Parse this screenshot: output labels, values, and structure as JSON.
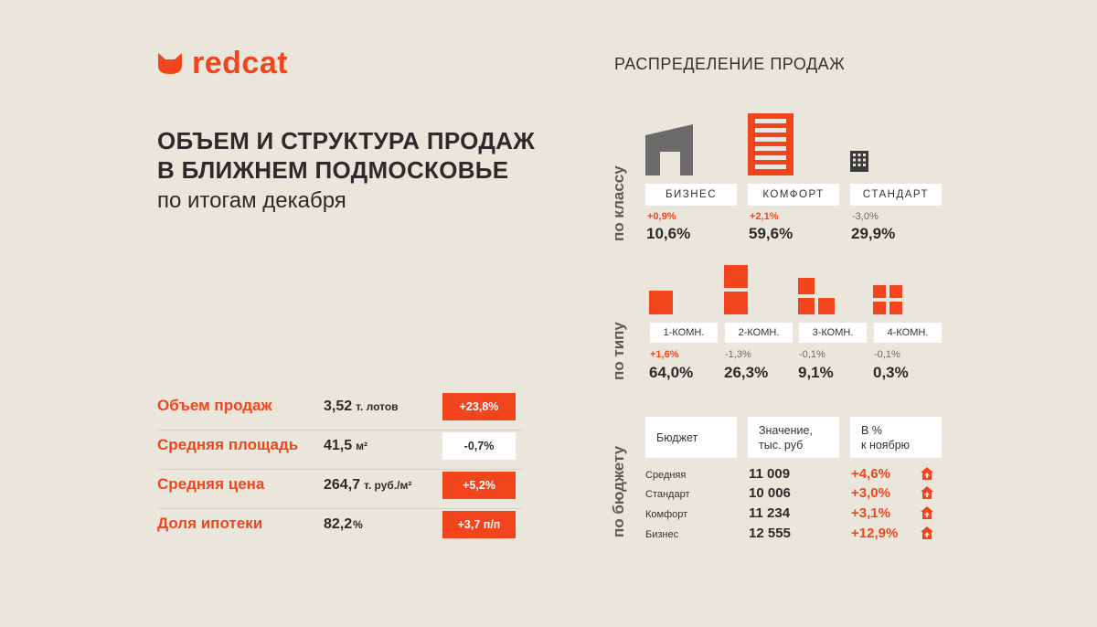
{
  "brand": {
    "name": "redcat",
    "color": "#f2441d"
  },
  "headline": {
    "line1": "ОБЪЕМ И СТРУКТУРА ПРОДАЖ",
    "line2": "В БЛИЖНЕМ ПОДМОСКОВЬЕ",
    "subtitle": "по итогам декабря"
  },
  "metrics": [
    {
      "label": "Объем продаж",
      "value": "3,52",
      "unit": "т. лотов",
      "change": "+23,8%",
      "positive": true
    },
    {
      "label": "Средняя площадь",
      "value": "41,5",
      "unit": "м²",
      "change": "-0,7%",
      "positive": false
    },
    {
      "label": "Средняя цена",
      "value": "264,7",
      "unit": "т. руб./м²",
      "change": "+5,2%",
      "positive": true
    },
    {
      "label": "Доля ипотеки",
      "value": "82,2",
      "unit": "%",
      "change": "+3,7 п/п",
      "positive": true
    }
  ],
  "distribution": {
    "title": "РАСПРЕДЕЛЕНИЕ ПРОДАЖ",
    "by_class": {
      "axis_label": "по классу",
      "items": [
        {
          "label": "БИЗНЕС",
          "delta": "+0,9%",
          "share": "10,6%",
          "icon": "business-building-icon",
          "positive": true
        },
        {
          "label": "КОМФОРТ",
          "delta": "+2,1%",
          "share": "59,6%",
          "icon": "comfort-building-icon",
          "positive": true
        },
        {
          "label": "СТАНДАРТ",
          "delta": "-3,0%",
          "share": "29,9%",
          "icon": "standard-building-icon",
          "positive": false
        }
      ]
    },
    "by_type": {
      "axis_label": "по типу",
      "items": [
        {
          "label": "1-КОМН.",
          "delta": "+1,6%",
          "share": "64,0%",
          "icon": "one-room-icon",
          "positive": true
        },
        {
          "label": "2-КОМН.",
          "delta": "-1,3%",
          "share": "26,3%",
          "icon": "two-room-icon",
          "positive": false
        },
        {
          "label": "3-КОМН.",
          "delta": "-0,1%",
          "share": "9,1%",
          "icon": "three-room-icon",
          "positive": false
        },
        {
          "label": "4-КОМН.",
          "delta": "-0,1%",
          "share": "0,3%",
          "icon": "four-room-icon",
          "positive": false
        }
      ]
    },
    "by_budget": {
      "axis_label": "по бюджету",
      "headers": [
        "Бюджет",
        "Значение, тыс. руб",
        "В % к ноябрю"
      ],
      "header_lines": [
        [
          "Бюджет"
        ],
        [
          "Значение,",
          "тыс. руб"
        ],
        [
          "В %",
          "к ноябрю"
        ]
      ],
      "rows": [
        {
          "label": "Средняя",
          "value": "11 009",
          "change": "+4,6%",
          "icon": "house-up-icon"
        },
        {
          "label": "Стандарт",
          "value": "10 006",
          "change": "+3,0%",
          "icon": "house-up-icon"
        },
        {
          "label": "Комфорт",
          "value": "11 234",
          "change": "+3,1%",
          "icon": "house-up-icon"
        },
        {
          "label": "Бизнес",
          "value": "12 555",
          "change": "+12,9%",
          "icon": "house-up-icon"
        }
      ]
    }
  },
  "colors": {
    "background": "#ebe6dc",
    "accent": "#f2441d",
    "text": "#2b2b2b",
    "muted": "#6b6b6b",
    "gray_icon": "#6b6b6b"
  }
}
